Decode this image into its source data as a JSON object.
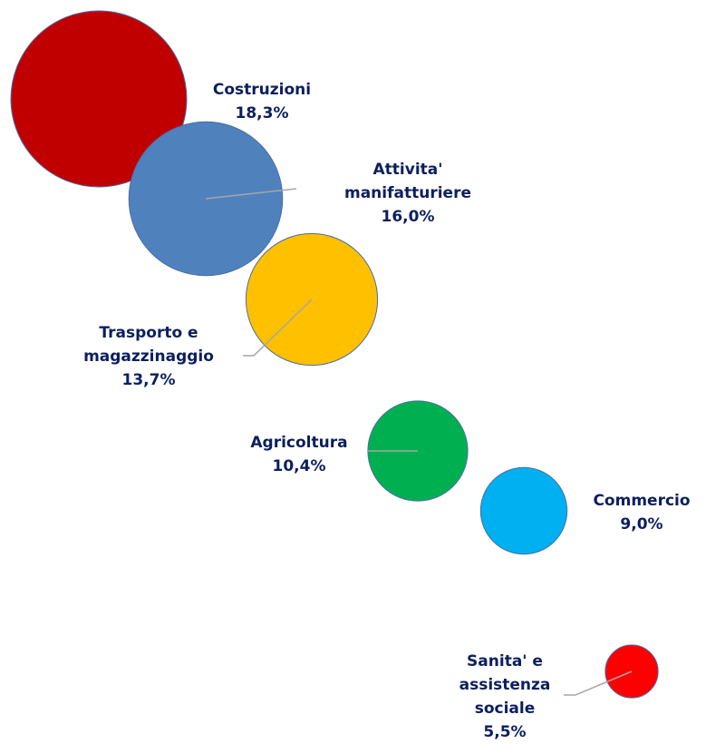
{
  "chart_data": {
    "type": "bubble",
    "categories": [
      "Costruzioni",
      "Attivita' manifatturiere",
      "Trasporto e magazzinaggio",
      "Agricoltura",
      "Commercio",
      "Sanita' e assistenza sociale"
    ],
    "values": [
      18.3,
      16.0,
      13.7,
      10.4,
      9.0,
      5.5
    ],
    "value_labels": [
      "18,3%",
      "16,0%",
      "13,7%",
      "10,4%",
      "9,0%",
      "5,5%"
    ],
    "colors": [
      "#c00000",
      "#4f81bd",
      "#ffc000",
      "#00b050",
      "#00b0f0",
      "#ff0000"
    ]
  }
}
